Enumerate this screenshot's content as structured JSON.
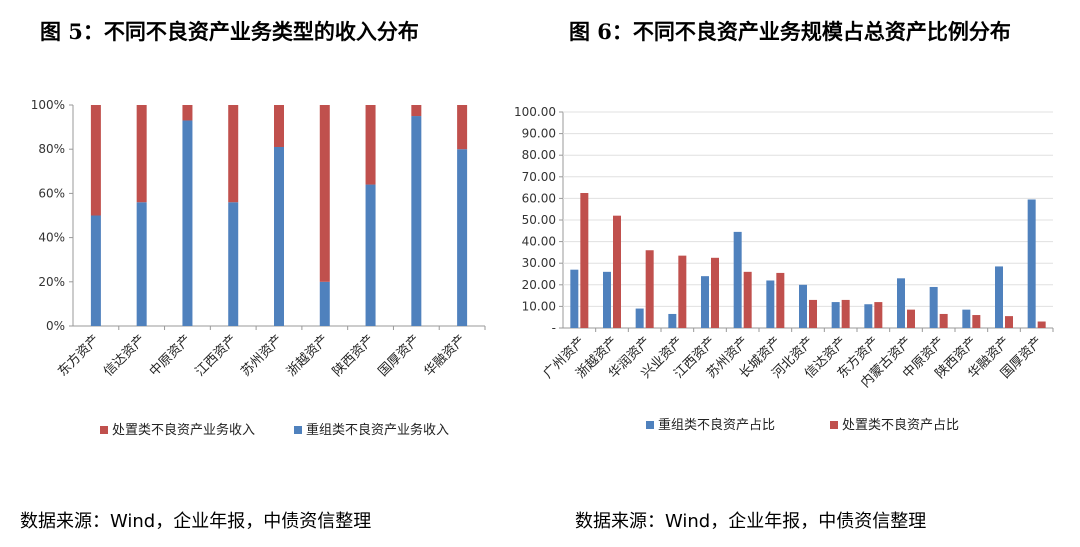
{
  "left_panel": {
    "title": "图 5：不同不良资产业务类型的收入分布",
    "source": "数据来源：Wind，企业年报，中债资信整理"
  },
  "right_panel": {
    "title": "图 6：不同不良资产业务规模占总资产比例分布",
    "source": "数据来源：Wind，企业年报，中债资信整理"
  },
  "colors": {
    "blue": "#4f81bd",
    "red": "#c0504d"
  },
  "chart_data": [
    {
      "type": "bar",
      "stacked": true,
      "percent": true,
      "categories": [
        "东方资产",
        "信达资产",
        "中原资产",
        "江西资产",
        "苏州资产",
        "浙越资产",
        "陕西资产",
        "国厚资产",
        "华融资产"
      ],
      "series": [
        {
          "name": "重组类不良资产业务收入",
          "values": [
            50,
            56,
            93,
            56,
            81,
            20,
            64,
            95,
            80
          ]
        },
        {
          "name": "处置类不良资产业务收入",
          "values": [
            50,
            44,
            7,
            44,
            19,
            80,
            36,
            5,
            20
          ]
        }
      ],
      "yticks": [
        "0%",
        "20%",
        "40%",
        "60%",
        "80%",
        "100%"
      ],
      "ylim": [
        0,
        100
      ],
      "legend": [
        "处置类不良资产业务收入",
        "重组类不良资产业务收入"
      ],
      "legend_position": "bottom"
    },
    {
      "type": "bar",
      "grouped": true,
      "categories": [
        "广州资产",
        "浙越资产",
        "华润资产",
        "兴业资产",
        "江西资产",
        "苏州资产",
        "长城资产",
        "河北资产",
        "信达资产",
        "东方资产",
        "内蒙古资产",
        "中原资产",
        "陕西资产",
        "华融资产",
        "国厚资产"
      ],
      "series": [
        {
          "name": "重组类不良资产占比",
          "values": [
            27,
            26,
            9,
            6.5,
            24,
            44.5,
            22,
            20,
            12,
            11,
            23,
            19,
            8.5,
            28.5,
            59.5
          ]
        },
        {
          "name": "处置类不良资产占比",
          "values": [
            62.5,
            52,
            36,
            33.5,
            32.5,
            26,
            25.5,
            13,
            13,
            12,
            8.5,
            6.5,
            6,
            5.5,
            3
          ]
        }
      ],
      "yticks": [
        "-",
        "10.00",
        "20.00",
        "30.00",
        "40.00",
        "50.00",
        "60.00",
        "70.00",
        "80.00",
        "90.00",
        "100.00"
      ],
      "ylim": [
        0,
        100
      ],
      "legend": [
        "重组类不良资产占比",
        "处置类不良资产占比"
      ],
      "legend_position": "bottom"
    }
  ]
}
